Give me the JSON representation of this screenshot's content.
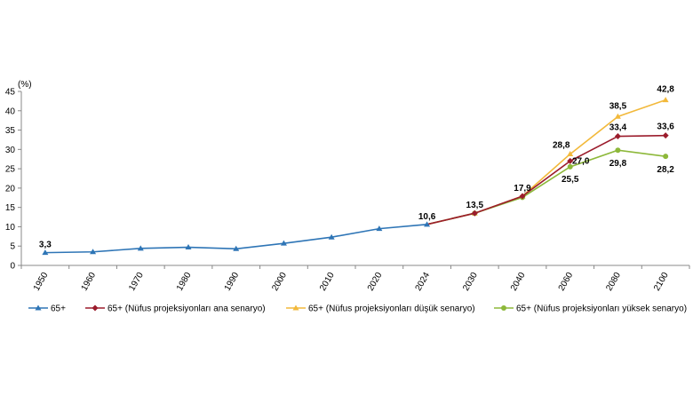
{
  "chart_data": {
    "type": "line",
    "unit_label": "(%)",
    "categories": [
      "1950",
      "1960",
      "1970",
      "1980",
      "1990",
      "2000",
      "2010",
      "2020",
      "2024",
      "2030",
      "2040",
      "2060",
      "2080",
      "2100"
    ],
    "ylim": [
      0,
      45
    ],
    "yticks": [
      0,
      5,
      10,
      15,
      20,
      25,
      30,
      35,
      40,
      45
    ],
    "grid": false,
    "legend_position": "bottom",
    "series": [
      {
        "name": "65+",
        "color": "#2e75b6",
        "marker": "triangle",
        "points": [
          {
            "x": "1950",
            "y": 3.3,
            "label": "3,3"
          },
          {
            "x": "1960",
            "y": 3.5
          },
          {
            "x": "1970",
            "y": 4.4
          },
          {
            "x": "1980",
            "y": 4.7
          },
          {
            "x": "1990",
            "y": 4.3
          },
          {
            "x": "2000",
            "y": 5.7
          },
          {
            "x": "2010",
            "y": 7.3
          },
          {
            "x": "2020",
            "y": 9.5
          },
          {
            "x": "2024",
            "y": 10.6,
            "label": "10,6"
          }
        ]
      },
      {
        "name": "65+ (Nüfus projeksiyonları ana senaryo)",
        "color": "#9b1c2c",
        "marker": "diamond",
        "points": [
          {
            "x": "2024",
            "y": 10.6
          },
          {
            "x": "2030",
            "y": 13.5,
            "label": "13,5"
          },
          {
            "x": "2040",
            "y": 17.9,
            "label": "17,9"
          },
          {
            "x": "2060",
            "y": 27.0,
            "label": "27,0"
          },
          {
            "x": "2080",
            "y": 33.4,
            "label": "33,4"
          },
          {
            "x": "2100",
            "y": 33.6,
            "label": "33,6"
          }
        ]
      },
      {
        "name": "65+ (Nüfus projeksiyonları düşük senaryo)",
        "color": "#f2b93b",
        "marker": "triangle",
        "points": [
          {
            "x": "2024",
            "y": 10.6
          },
          {
            "x": "2030",
            "y": 13.5
          },
          {
            "x": "2040",
            "y": 17.9
          },
          {
            "x": "2060",
            "y": 28.8,
            "label": "28,8"
          },
          {
            "x": "2080",
            "y": 38.5,
            "label": "38,5"
          },
          {
            "x": "2100",
            "y": 42.8,
            "label": "42,8"
          }
        ]
      },
      {
        "name": "65+ (Nüfus projeksiyonları yüksek senaryo)",
        "color": "#8db83a",
        "marker": "circle",
        "points": [
          {
            "x": "2024",
            "y": 10.6
          },
          {
            "x": "2030",
            "y": 13.5
          },
          {
            "x": "2040",
            "y": 17.6
          },
          {
            "x": "2060",
            "y": 25.5,
            "label": "25,5"
          },
          {
            "x": "2080",
            "y": 29.8,
            "label": "29,8"
          },
          {
            "x": "2100",
            "y": 28.2,
            "label": "28,2"
          }
        ]
      }
    ]
  }
}
